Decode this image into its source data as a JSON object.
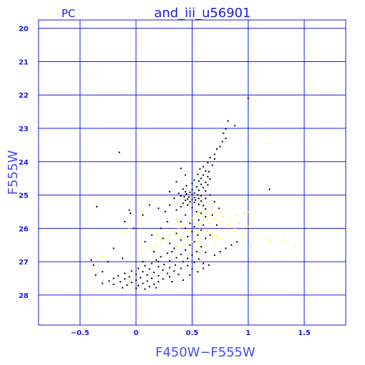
{
  "header": {
    "left_label": "PC",
    "title": "and_iii_u56901"
  },
  "colors": {
    "axis": "#1a1adf",
    "grid": "#1a1adf",
    "label": "#4a4af0",
    "primary_points": "#000000",
    "secondary_points": "#ffff00"
  },
  "chart_data": {
    "type": "scatter",
    "title": "and_iii_u56901",
    "xlabel": "F450W−F555W",
    "ylabel": "F555W",
    "xlim": [
      -0.87,
      1.87
    ],
    "ylim": [
      28.9,
      19.75
    ],
    "y_inverted": true,
    "grid": true,
    "x_ticks": [
      -0.5,
      0,
      0.5,
      1,
      1.5
    ],
    "x_tick_labels": [
      "−0.5",
      "0",
      "0.5",
      "1",
      "1.5"
    ],
    "y_ticks": [
      20,
      21,
      22,
      23,
      24,
      25,
      26,
      27,
      28
    ],
    "y_tick_labels": [
      "20",
      "21",
      "22",
      "23",
      "24",
      "25",
      "26",
      "27",
      "28"
    ],
    "series": [
      {
        "color": "#000000",
        "points": [
          [
            1.0,
            22.1
          ],
          [
            0.88,
            22.92
          ],
          [
            0.82,
            22.78
          ],
          [
            0.8,
            23.02
          ],
          [
            0.78,
            23.15
          ],
          [
            0.8,
            23.3
          ],
          [
            0.77,
            23.4
          ],
          [
            0.75,
            23.55
          ],
          [
            0.72,
            23.62
          ],
          [
            0.7,
            23.78
          ],
          [
            0.66,
            23.88
          ],
          [
            0.7,
            23.92
          ],
          [
            0.64,
            24.03
          ],
          [
            0.68,
            24.1
          ],
          [
            0.6,
            24.15
          ],
          [
            0.57,
            24.22
          ],
          [
            0.62,
            24.28
          ],
          [
            0.65,
            24.3
          ],
          [
            0.55,
            24.38
          ],
          [
            0.6,
            24.4
          ],
          [
            0.64,
            24.45
          ],
          [
            0.58,
            24.5
          ],
          [
            0.66,
            24.52
          ],
          [
            0.52,
            24.55
          ],
          [
            0.56,
            24.58
          ],
          [
            0.62,
            24.62
          ],
          [
            0.5,
            24.65
          ],
          [
            0.58,
            24.68
          ],
          [
            0.64,
            24.7
          ],
          [
            0.45,
            24.72
          ],
          [
            0.54,
            24.75
          ],
          [
            0.6,
            24.78
          ],
          [
            0.42,
            24.82
          ],
          [
            0.5,
            24.84
          ],
          [
            0.56,
            24.86
          ],
          [
            0.62,
            24.88
          ],
          [
            0.44,
            24.9
          ],
          [
            0.48,
            24.92
          ],
          [
            0.52,
            24.94
          ],
          [
            0.38,
            24.95
          ],
          [
            0.45,
            24.97
          ],
          [
            0.5,
            24.98
          ],
          [
            0.55,
            25.0
          ],
          [
            0.58,
            25.02
          ],
          [
            0.4,
            25.03
          ],
          [
            0.43,
            25.05
          ],
          [
            0.47,
            25.06
          ],
          [
            0.52,
            25.08
          ],
          [
            0.56,
            25.1
          ],
          [
            0.62,
            25.1
          ],
          [
            0.46,
            25.12
          ],
          [
            0.5,
            25.14
          ],
          [
            0.53,
            25.15
          ],
          [
            0.44,
            25.16
          ],
          [
            0.58,
            25.18
          ],
          [
            0.48,
            25.2
          ],
          [
            0.52,
            25.22
          ],
          [
            0.42,
            25.25
          ],
          [
            0.56,
            25.28
          ],
          [
            0.46,
            25.3
          ],
          [
            0.6,
            25.32
          ],
          [
            0.4,
            25.35
          ],
          [
            0.5,
            25.38
          ],
          [
            0.62,
            25.42
          ],
          [
            0.36,
            25.45
          ],
          [
            0.54,
            25.5
          ],
          [
            0.58,
            25.55
          ],
          [
            0.44,
            25.6
          ],
          [
            0.62,
            25.65
          ],
          [
            0.5,
            25.7
          ],
          [
            0.56,
            25.75
          ],
          [
            0.4,
            25.8
          ],
          [
            0.48,
            25.85
          ],
          [
            0.6,
            25.9
          ],
          [
            0.52,
            25.95
          ],
          [
            0.44,
            26.0
          ],
          [
            0.58,
            26.05
          ],
          [
            0.5,
            26.1
          ],
          [
            0.36,
            26.15
          ],
          [
            0.55,
            26.2
          ],
          [
            0.46,
            26.25
          ],
          [
            0.62,
            26.3
          ],
          [
            0.4,
            26.35
          ],
          [
            0.52,
            26.4
          ],
          [
            0.3,
            26.45
          ],
          [
            0.48,
            26.5
          ],
          [
            0.58,
            26.55
          ],
          [
            0.34,
            26.6
          ],
          [
            0.44,
            26.65
          ],
          [
            0.54,
            26.7
          ],
          [
            0.62,
            26.72
          ],
          [
            0.28,
            26.75
          ],
          [
            0.4,
            26.78
          ],
          [
            0.5,
            26.8
          ],
          [
            0.22,
            26.85
          ],
          [
            0.36,
            26.88
          ],
          [
            0.46,
            26.9
          ],
          [
            0.56,
            26.92
          ],
          [
            0.18,
            26.95
          ],
          [
            0.3,
            26.98
          ],
          [
            0.42,
            27.0
          ],
          [
            0.52,
            27.02
          ],
          [
            0.6,
            27.05
          ],
          [
            0.14,
            27.05
          ],
          [
            0.25,
            27.08
          ],
          [
            0.35,
            27.1
          ],
          [
            0.46,
            27.12
          ],
          [
            0.08,
            27.12
          ],
          [
            0.2,
            27.15
          ],
          [
            0.3,
            27.18
          ],
          [
            0.4,
            27.2
          ],
          [
            0.5,
            27.22
          ],
          [
            0.02,
            27.2
          ],
          [
            0.12,
            27.22
          ],
          [
            0.24,
            27.25
          ],
          [
            0.34,
            27.28
          ],
          [
            -0.04,
            27.28
          ],
          [
            0.06,
            27.3
          ],
          [
            0.16,
            27.32
          ],
          [
            0.28,
            27.35
          ],
          [
            0.38,
            27.38
          ],
          [
            -0.1,
            27.35
          ],
          [
            0.0,
            27.38
          ],
          [
            0.1,
            27.4
          ],
          [
            0.2,
            27.42
          ],
          [
            0.3,
            27.45
          ],
          [
            -0.16,
            27.42
          ],
          [
            -0.06,
            27.45
          ],
          [
            0.04,
            27.48
          ],
          [
            0.14,
            27.5
          ],
          [
            0.24,
            27.52
          ],
          [
            -0.2,
            27.5
          ],
          [
            -0.1,
            27.52
          ],
          [
            0.0,
            27.55
          ],
          [
            0.1,
            27.58
          ],
          [
            0.2,
            27.6
          ],
          [
            -0.24,
            27.58
          ],
          [
            -0.14,
            27.6
          ],
          [
            -0.04,
            27.62
          ],
          [
            0.06,
            27.65
          ],
          [
            0.16,
            27.68
          ],
          [
            -0.3,
            27.65
          ],
          [
            -0.2,
            27.68
          ],
          [
            -0.08,
            27.7
          ],
          [
            0.02,
            27.72
          ],
          [
            0.12,
            27.75
          ],
          [
            -0.12,
            27.78
          ],
          [
            0.0,
            27.8
          ],
          [
            0.08,
            27.82
          ],
          [
            0.18,
            27.78
          ],
          [
            -0.36,
            27.4
          ],
          [
            -0.3,
            27.3
          ],
          [
            -0.38,
            27.1
          ],
          [
            -0.4,
            26.95
          ],
          [
            -0.25,
            27.0
          ],
          [
            0.75,
            26.7
          ],
          [
            0.8,
            26.6
          ],
          [
            0.85,
            26.5
          ],
          [
            0.9,
            26.4
          ],
          [
            0.7,
            26.8
          ],
          [
            0.66,
            26.2
          ],
          [
            0.72,
            25.9
          ],
          [
            0.68,
            25.6
          ],
          [
            0.74,
            25.4
          ],
          [
            0.7,
            25.2
          ],
          [
            0.66,
            25.0
          ],
          [
            0.34,
            25.1
          ],
          [
            0.3,
            25.3
          ],
          [
            0.26,
            25.5
          ],
          [
            0.2,
            25.4
          ],
          [
            0.12,
            25.3
          ],
          [
            0.06,
            25.6
          ],
          [
            -0.05,
            25.55
          ],
          [
            -0.1,
            25.8
          ],
          [
            -0.02,
            26.0
          ],
          [
            0.14,
            26.2
          ],
          [
            0.22,
            26.0
          ],
          [
            0.08,
            26.4
          ],
          [
            -0.2,
            26.6
          ],
          [
            -0.12,
            26.9
          ],
          [
            0.4,
            24.2
          ],
          [
            0.44,
            24.4
          ],
          [
            0.36,
            24.6
          ],
          [
            0.3,
            24.9
          ],
          [
            0.28,
            25.8
          ],
          [
            0.24,
            26.3
          ],
          [
            0.16,
            26.7
          ],
          [
            0.32,
            26.7
          ],
          [
            0.2,
            27.0
          ],
          [
            0.06,
            27.0
          ],
          [
            -0.35,
            25.35
          ],
          [
            -0.15,
            23.72
          ],
          [
            1.19,
            24.83
          ],
          [
            -0.06,
            25.45
          ],
          [
            0.32,
            27.6
          ],
          [
            0.42,
            27.55
          ],
          [
            0.48,
            27.4
          ],
          [
            0.55,
            27.3
          ],
          [
            0.6,
            27.2
          ],
          [
            0.65,
            27.1
          ]
        ]
      },
      {
        "color": "#ffff00",
        "points": [
          [
            1.18,
            23.45
          ],
          [
            1.42,
            26.55
          ],
          [
            1.32,
            26.35
          ],
          [
            1.2,
            26.35
          ],
          [
            1.05,
            26.4
          ],
          [
            0.95,
            26.2
          ],
          [
            0.88,
            26.0
          ],
          [
            0.82,
            25.9
          ],
          [
            0.76,
            25.8
          ],
          [
            0.7,
            25.7
          ],
          [
            0.66,
            25.6
          ],
          [
            0.62,
            25.55
          ],
          [
            0.58,
            25.5
          ],
          [
            0.54,
            25.6
          ],
          [
            0.5,
            25.7
          ],
          [
            0.46,
            25.8
          ],
          [
            0.42,
            25.9
          ],
          [
            0.38,
            26.0
          ],
          [
            0.34,
            26.1
          ],
          [
            0.3,
            26.2
          ],
          [
            0.26,
            26.3
          ],
          [
            0.22,
            26.4
          ],
          [
            0.18,
            26.5
          ],
          [
            0.14,
            26.6
          ],
          [
            0.6,
            26.05
          ],
          [
            0.64,
            26.1
          ],
          [
            0.56,
            26.15
          ],
          [
            0.68,
            26.2
          ],
          [
            0.72,
            26.25
          ],
          [
            0.76,
            26.3
          ],
          [
            0.84,
            25.75
          ],
          [
            0.9,
            25.6
          ],
          [
            0.96,
            25.55
          ],
          [
            1.0,
            25.5
          ],
          [
            0.74,
            25.55
          ],
          [
            0.78,
            25.65
          ],
          [
            0.5,
            26.4
          ],
          [
            0.44,
            26.5
          ],
          [
            0.52,
            26.6
          ],
          [
            0.36,
            26.55
          ],
          [
            0.28,
            26.35
          ],
          [
            0.2,
            26.2
          ],
          [
            0.1,
            26.1
          ],
          [
            -0.1,
            26.1
          ],
          [
            -0.06,
            26.0
          ],
          [
            0.3,
            25.85
          ],
          [
            0.36,
            25.75
          ],
          [
            0.88,
            26.1
          ],
          [
            0.8,
            26.45
          ],
          [
            0.92,
            25.85
          ],
          [
            1.0,
            25.95
          ],
          [
            0.66,
            25.85
          ],
          [
            0.6,
            25.75
          ],
          [
            0.54,
            25.95
          ],
          [
            0.48,
            26.05
          ],
          [
            -0.3,
            26.85
          ],
          [
            0.58,
            26.35
          ],
          [
            0.62,
            26.5
          ],
          [
            0.4,
            26.25
          ],
          [
            0.7,
            26.45
          ]
        ]
      }
    ]
  }
}
